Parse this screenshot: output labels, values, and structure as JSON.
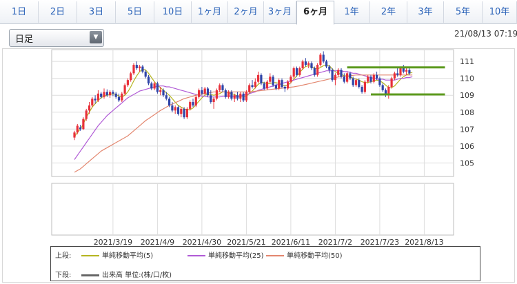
{
  "tabs": [
    {
      "label": "1日"
    },
    {
      "label": "2日"
    },
    {
      "label": "3日"
    },
    {
      "label": "5日"
    },
    {
      "label": "10日"
    },
    {
      "label": "1ヶ月"
    },
    {
      "label": "2ヶ月"
    },
    {
      "label": "3ヶ月"
    },
    {
      "label": "6ヶ月"
    },
    {
      "label": "1年"
    },
    {
      "label": "2年"
    },
    {
      "label": "3年"
    },
    {
      "label": "5年"
    },
    {
      "label": "10年"
    }
  ],
  "active_tab": "6ヶ月",
  "period_select": {
    "value": "日足"
  },
  "timestamp": "21/08/13 07:19",
  "legend": {
    "upper_label": "上段:",
    "lower_label": "下段:",
    "ma5": "単純移動平均(5)",
    "ma25": "単純移動平均(25)",
    "ma50": "単純移動平均(50)",
    "volume": "出来高 単位:(株/口/枚)"
  },
  "colors": {
    "up": "#e8303a",
    "down": "#2f44a8",
    "ma5": "#b5b520",
    "ma25": "#b05ad6",
    "ma50": "#e3866e",
    "support": "#5c9a1e",
    "active_tab_text": "#222222",
    "tab_text": "#2a62b8"
  },
  "chart_data": {
    "type": "candlestick",
    "ylim": [
      104.2,
      111.7
    ],
    "yticks": [
      105,
      106,
      107,
      108,
      109,
      110,
      111
    ],
    "xticks": [
      "2021/3/19",
      "2021/4/9",
      "2021/4/30",
      "2021/5/21",
      "2021/6/11",
      "2021/7/2",
      "2021/7/23",
      "2021/8/13"
    ],
    "xtick_index": [
      13,
      28,
      43,
      58,
      73,
      88,
      103,
      118
    ],
    "grid": true,
    "horizontal_lines": [
      {
        "value": 110.65,
        "from_index": 92,
        "to_index": 125
      },
      {
        "value": 109.05,
        "from_index": 100,
        "to_index": 125
      }
    ],
    "series": [
      {
        "type": "ohlc",
        "start_index": 0,
        "values": [
          [
            106.5,
            106.9,
            106.35,
            106.8
          ],
          [
            106.8,
            107.3,
            106.7,
            107.2
          ],
          [
            107.1,
            107.25,
            106.9,
            107.0
          ],
          [
            107.0,
            107.7,
            106.95,
            107.6
          ],
          [
            107.6,
            108.2,
            107.5,
            108.1
          ],
          [
            108.1,
            108.6,
            107.9,
            108.4
          ],
          [
            108.4,
            108.9,
            108.3,
            108.8
          ],
          [
            108.8,
            109.0,
            108.5,
            108.7
          ],
          [
            108.7,
            109.3,
            108.6,
            109.1
          ],
          [
            109.1,
            109.2,
            108.8,
            108.9
          ],
          [
            108.9,
            109.4,
            108.8,
            109.2
          ],
          [
            109.2,
            109.35,
            108.9,
            109.0
          ],
          [
            109.0,
            109.3,
            108.85,
            109.2
          ],
          [
            109.2,
            109.3,
            108.95,
            109.1
          ],
          [
            109.1,
            109.2,
            108.8,
            108.9
          ],
          [
            108.9,
            109.1,
            108.6,
            108.7
          ],
          [
            108.7,
            109.2,
            108.6,
            109.1
          ],
          [
            109.1,
            109.7,
            109.0,
            109.6
          ],
          [
            109.6,
            110.0,
            109.5,
            109.9
          ],
          [
            109.9,
            110.4,
            109.8,
            110.3
          ],
          [
            110.3,
            110.9,
            110.2,
            110.8
          ],
          [
            110.8,
            111.0,
            110.5,
            110.6
          ],
          [
            110.6,
            110.8,
            110.4,
            110.7
          ],
          [
            110.7,
            110.8,
            110.3,
            110.4
          ],
          [
            110.4,
            110.5,
            110.0,
            110.1
          ],
          [
            110.1,
            110.2,
            109.6,
            109.7
          ],
          [
            109.7,
            109.8,
            109.3,
            109.4
          ],
          [
            109.4,
            109.8,
            109.3,
            109.7
          ],
          [
            109.7,
            109.8,
            109.1,
            109.2
          ],
          [
            109.2,
            109.5,
            109.0,
            109.3
          ],
          [
            109.3,
            109.4,
            108.9,
            109.0
          ],
          [
            109.0,
            109.2,
            108.7,
            108.8
          ],
          [
            108.8,
            108.9,
            108.3,
            108.4
          ],
          [
            108.4,
            108.6,
            108.0,
            108.1
          ],
          [
            108.1,
            108.4,
            107.9,
            108.3
          ],
          [
            108.3,
            108.4,
            107.8,
            107.9
          ],
          [
            107.9,
            108.3,
            107.7,
            108.2
          ],
          [
            108.2,
            108.3,
            107.6,
            107.7
          ],
          [
            107.7,
            108.3,
            107.6,
            108.2
          ],
          [
            108.2,
            108.7,
            108.1,
            108.6
          ],
          [
            108.6,
            108.8,
            108.3,
            108.4
          ],
          [
            108.4,
            109.0,
            108.3,
            108.9
          ],
          [
            108.9,
            109.4,
            108.8,
            109.3
          ],
          [
            109.3,
            109.5,
            109.0,
            109.1
          ],
          [
            109.1,
            109.5,
            109.0,
            109.4
          ],
          [
            109.4,
            109.5,
            108.9,
            109.0
          ],
          [
            109.0,
            109.3,
            108.5,
            108.6
          ],
          [
            108.6,
            108.9,
            108.2,
            108.8
          ],
          [
            108.8,
            109.4,
            108.7,
            109.3
          ],
          [
            109.3,
            109.7,
            109.2,
            109.6
          ],
          [
            109.6,
            109.7,
            109.2,
            109.3
          ],
          [
            109.3,
            109.4,
            108.8,
            108.9
          ],
          [
            108.9,
            109.3,
            108.8,
            109.2
          ],
          [
            109.2,
            109.3,
            108.7,
            108.8
          ],
          [
            108.8,
            109.1,
            108.6,
            109.0
          ],
          [
            109.0,
            109.2,
            108.7,
            108.8
          ],
          [
            108.8,
            109.2,
            108.6,
            109.1
          ],
          [
            109.1,
            109.2,
            108.6,
            108.7
          ],
          [
            108.7,
            109.3,
            108.6,
            109.2
          ],
          [
            109.2,
            109.7,
            109.1,
            109.6
          ],
          [
            109.6,
            109.9,
            109.4,
            109.5
          ],
          [
            109.5,
            110.0,
            109.4,
            109.8
          ],
          [
            109.8,
            110.4,
            109.7,
            110.2
          ],
          [
            110.2,
            110.3,
            109.6,
            109.7
          ],
          [
            109.7,
            109.8,
            109.3,
            109.4
          ],
          [
            109.4,
            109.9,
            109.3,
            109.8
          ],
          [
            109.8,
            110.3,
            109.7,
            110.1
          ],
          [
            110.1,
            110.2,
            109.5,
            109.6
          ],
          [
            109.6,
            109.7,
            109.3,
            109.4
          ],
          [
            109.4,
            110.0,
            109.3,
            109.9
          ],
          [
            109.9,
            110.0,
            109.4,
            109.5
          ],
          [
            109.5,
            109.6,
            109.2,
            109.4
          ],
          [
            109.4,
            109.9,
            109.3,
            109.8
          ],
          [
            109.8,
            110.2,
            109.7,
            110.1
          ],
          [
            110.1,
            110.7,
            110.0,
            110.6
          ],
          [
            110.6,
            110.7,
            110.1,
            110.2
          ],
          [
            110.2,
            110.7,
            110.1,
            110.6
          ],
          [
            110.6,
            111.1,
            110.5,
            111.0
          ],
          [
            111.0,
            111.2,
            110.7,
            110.8
          ],
          [
            110.8,
            111.0,
            110.6,
            110.9
          ],
          [
            110.9,
            111.0,
            110.5,
            110.6
          ],
          [
            110.6,
            110.7,
            110.1,
            110.2
          ],
          [
            110.2,
            110.9,
            110.1,
            110.8
          ],
          [
            110.8,
            111.5,
            110.7,
            111.4
          ],
          [
            111.4,
            111.6,
            110.9,
            111.0
          ],
          [
            111.0,
            111.1,
            110.6,
            110.7
          ],
          [
            110.7,
            110.8,
            110.3,
            110.5
          ],
          [
            110.5,
            110.6,
            109.8,
            109.9
          ],
          [
            109.9,
            110.3,
            109.6,
            110.2
          ],
          [
            110.2,
            110.6,
            110.1,
            110.5
          ],
          [
            110.5,
            110.6,
            110.0,
            110.1
          ],
          [
            110.1,
            110.3,
            109.7,
            109.8
          ],
          [
            109.8,
            110.4,
            109.7,
            110.3
          ],
          [
            110.3,
            110.4,
            109.9,
            110.0
          ],
          [
            110.0,
            110.1,
            109.5,
            109.6
          ],
          [
            109.6,
            110.0,
            109.5,
            109.9
          ],
          [
            109.9,
            110.0,
            109.4,
            109.5
          ],
          [
            109.5,
            109.6,
            109.1,
            109.2
          ],
          [
            109.2,
            109.9,
            109.1,
            109.8
          ],
          [
            109.8,
            110.2,
            109.7,
            110.1
          ],
          [
            110.1,
            110.2,
            109.7,
            109.8
          ],
          [
            109.8,
            110.3,
            109.7,
            110.2
          ],
          [
            110.2,
            110.4,
            109.9,
            110.0
          ],
          [
            110.0,
            110.1,
            109.5,
            109.6
          ],
          [
            109.6,
            109.7,
            109.2,
            109.3
          ],
          [
            109.3,
            109.4,
            108.9,
            109.1
          ],
          [
            109.1,
            109.6,
            108.8,
            109.5
          ],
          [
            109.5,
            110.1,
            109.4,
            110.0
          ],
          [
            110.0,
            110.4,
            109.9,
            110.3
          ],
          [
            110.3,
            110.6,
            110.1,
            110.2
          ],
          [
            110.2,
            110.7,
            110.1,
            110.6
          ],
          [
            110.6,
            110.8,
            110.3,
            110.4
          ],
          [
            110.4,
            110.6,
            110.2,
            110.5
          ],
          [
            110.5,
            110.6,
            110.2,
            110.3
          ]
        ]
      },
      {
        "name": "単純移動平均(5)",
        "start_index": 0,
        "values": [
          106.55,
          106.8,
          107.0,
          107.3,
          107.7,
          108.0,
          108.3,
          108.5,
          108.7,
          108.85,
          108.95,
          109.0,
          109.05,
          109.1,
          109.05,
          108.95,
          108.9,
          109.0,
          109.2,
          109.5,
          109.85,
          110.15,
          110.4,
          110.55,
          110.5,
          110.3,
          110.05,
          109.8,
          109.6,
          109.45,
          109.3,
          109.15,
          109.0,
          108.8,
          108.6,
          108.4,
          108.3,
          108.2,
          108.15,
          108.15,
          108.25,
          108.45,
          108.65,
          108.85,
          109.0,
          109.1,
          109.05,
          109.0,
          109.05,
          109.1,
          109.2,
          109.2,
          109.15,
          109.1,
          109.05,
          108.95,
          108.95,
          108.95,
          108.95,
          109.1,
          109.25,
          109.45,
          109.65,
          109.75,
          109.75,
          109.7,
          109.7,
          109.75,
          109.75,
          109.7,
          109.6,
          109.55,
          109.6,
          109.75,
          109.95,
          110.15,
          110.35,
          110.55,
          110.7,
          110.75,
          110.7,
          110.6,
          110.55,
          110.65,
          110.75,
          110.8,
          110.75,
          110.55,
          110.4,
          110.3,
          110.25,
          110.15,
          110.15,
          110.1,
          110.0,
          109.95,
          109.9,
          109.8,
          109.75,
          109.75,
          109.8,
          109.85,
          109.9,
          109.85,
          109.75,
          109.6,
          109.45,
          109.45,
          109.55,
          109.75,
          109.95,
          110.1,
          110.2,
          110.3,
          110.35
        ]
      },
      {
        "name": "単純移動平均(25)",
        "start_index": 0,
        "values": [
          105.2,
          105.45,
          105.7,
          105.95,
          106.2,
          106.45,
          106.7,
          106.95,
          107.2,
          107.4,
          107.6,
          107.8,
          107.95,
          108.1,
          108.25,
          108.4,
          108.55,
          108.7,
          108.85,
          108.95,
          109.05,
          109.15,
          109.25,
          109.3,
          109.35,
          109.4,
          109.45,
          109.5,
          109.55,
          109.55,
          109.55,
          109.5,
          109.5,
          109.45,
          109.4,
          109.35,
          109.3,
          109.25,
          109.2,
          109.15,
          109.1,
          109.05,
          109.0,
          108.95,
          108.95,
          108.9,
          108.9,
          108.9,
          108.9,
          108.9,
          108.95,
          108.95,
          108.95,
          108.95,
          108.95,
          108.95,
          108.95,
          109.0,
          109.05,
          109.1,
          109.15,
          109.2,
          109.3,
          109.35,
          109.4,
          109.45,
          109.5,
          109.55,
          109.6,
          109.65,
          109.7,
          109.75,
          109.8,
          109.85,
          109.9,
          109.95,
          110.0,
          110.05,
          110.1,
          110.15,
          110.2,
          110.25,
          110.3,
          110.35,
          110.4,
          110.45,
          110.45,
          110.45,
          110.45,
          110.45,
          110.45,
          110.4,
          110.4,
          110.35,
          110.3,
          110.3,
          110.25,
          110.2,
          110.15,
          110.1,
          110.05,
          110.0,
          109.95,
          109.95,
          109.95,
          109.9,
          109.9,
          109.9,
          109.9,
          109.95,
          110.0,
          110.0,
          110.05,
          110.05,
          110.1
        ]
      },
      {
        "name": "単純移動平均(50)",
        "start_index": 0,
        "values": [
          104.45,
          104.55,
          104.65,
          104.8,
          104.95,
          105.1,
          105.25,
          105.4,
          105.55,
          105.7,
          105.8,
          105.9,
          106.0,
          106.1,
          106.2,
          106.3,
          106.4,
          106.5,
          106.6,
          106.75,
          106.9,
          107.05,
          107.2,
          107.35,
          107.5,
          107.62,
          107.74,
          107.86,
          107.98,
          108.1,
          108.2,
          108.3,
          108.4,
          108.48,
          108.56,
          108.64,
          108.72,
          108.8,
          108.85,
          108.9,
          108.95,
          109.0,
          109.05,
          109.08,
          109.11,
          109.14,
          109.17,
          109.2,
          109.2,
          109.2,
          109.2,
          109.2,
          109.2,
          109.2,
          109.2,
          109.2,
          109.2,
          109.2,
          109.2,
          109.2,
          109.22,
          109.24,
          109.26,
          109.28,
          109.3,
          109.32,
          109.34,
          109.36,
          109.38,
          109.4,
          109.42,
          109.44,
          109.46,
          109.48,
          109.5,
          109.53,
          109.56,
          109.6,
          109.64,
          109.68,
          109.72,
          109.76,
          109.8,
          109.84,
          109.88,
          109.92,
          109.96,
          110.0,
          110.04,
          110.08,
          110.1,
          110.12,
          110.14,
          110.16,
          110.18,
          110.2,
          110.2,
          110.2,
          110.2,
          110.2,
          110.2,
          110.2,
          110.2,
          110.2,
          110.2,
          110.2,
          110.2,
          110.2,
          110.2,
          110.2,
          110.2,
          110.2,
          110.2,
          110.2,
          110.2
        ]
      }
    ]
  }
}
